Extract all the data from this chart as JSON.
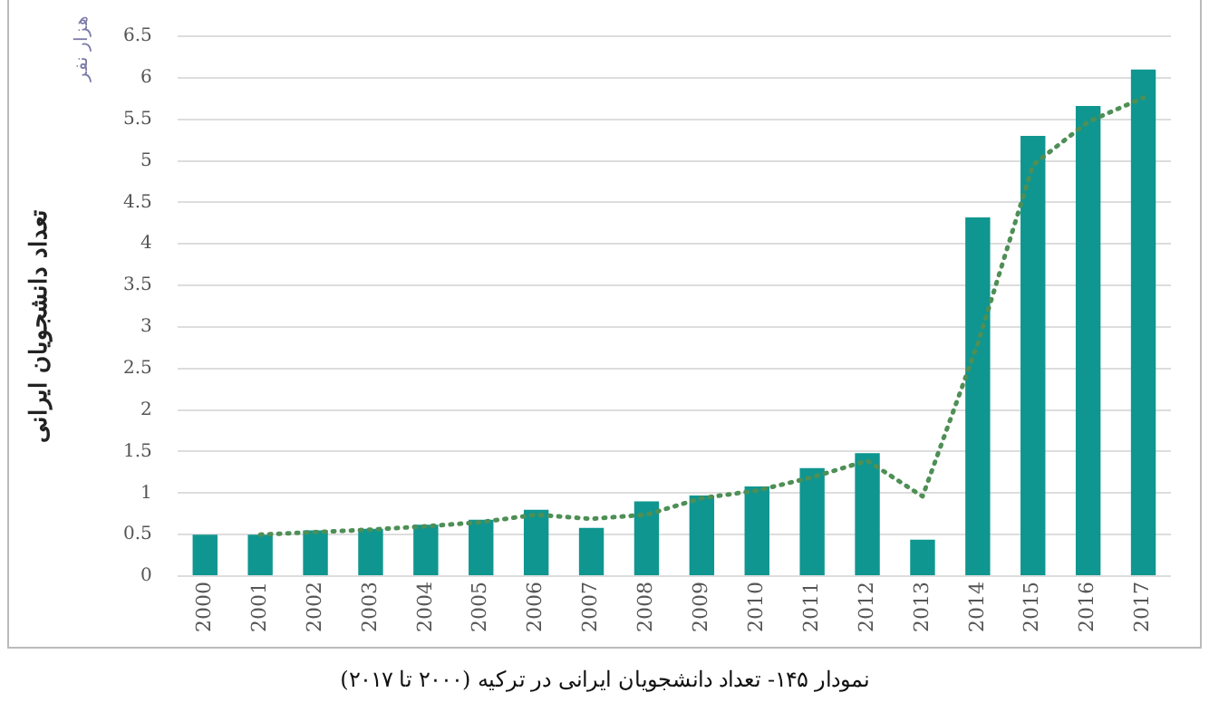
{
  "chart_data": {
    "type": "bar",
    "title": "نمودار ۱۴۵- تعداد دانشجویان ایرانی در ترکیه (۲۰۰۰ تا ۲۰۱۷)",
    "ylabel": "تعداد دانشجویان ایرانی",
    "annotations": [
      "هزار نفر"
    ],
    "categories": [
      "2000",
      "2001",
      "2002",
      "2003",
      "2004",
      "2005",
      "2006",
      "2007",
      "2008",
      "2009",
      "2010",
      "2011",
      "2012",
      "2013",
      "2014",
      "2015",
      "2016",
      "2017"
    ],
    "series": [
      {
        "color": "#0f9690",
        "values": [
          0.5,
          0.5,
          0.55,
          0.57,
          0.62,
          0.68,
          0.8,
          0.58,
          0.9,
          0.97,
          1.08,
          1.3,
          1.48,
          0.44,
          4.32,
          5.3,
          5.66,
          6.1
        ]
      },
      {
        "type": "line",
        "color": "#4e8f56",
        "line_style": "dotted",
        "marker": "none",
        "values": [
          null,
          0.5,
          0.53,
          0.56,
          0.6,
          0.65,
          0.74,
          0.69,
          0.74,
          0.94,
          1.03,
          1.19,
          1.39,
          0.96,
          2.8,
          4.95,
          5.47,
          5.76
        ]
      }
    ],
    "ylim": [
      0,
      6.5
    ],
    "yticks": [
      0,
      0.5,
      1,
      1.5,
      2,
      2.5,
      3,
      3.5,
      4,
      4.5,
      5,
      5.5,
      6,
      6.5
    ],
    "grid": "y",
    "legend": false
  }
}
